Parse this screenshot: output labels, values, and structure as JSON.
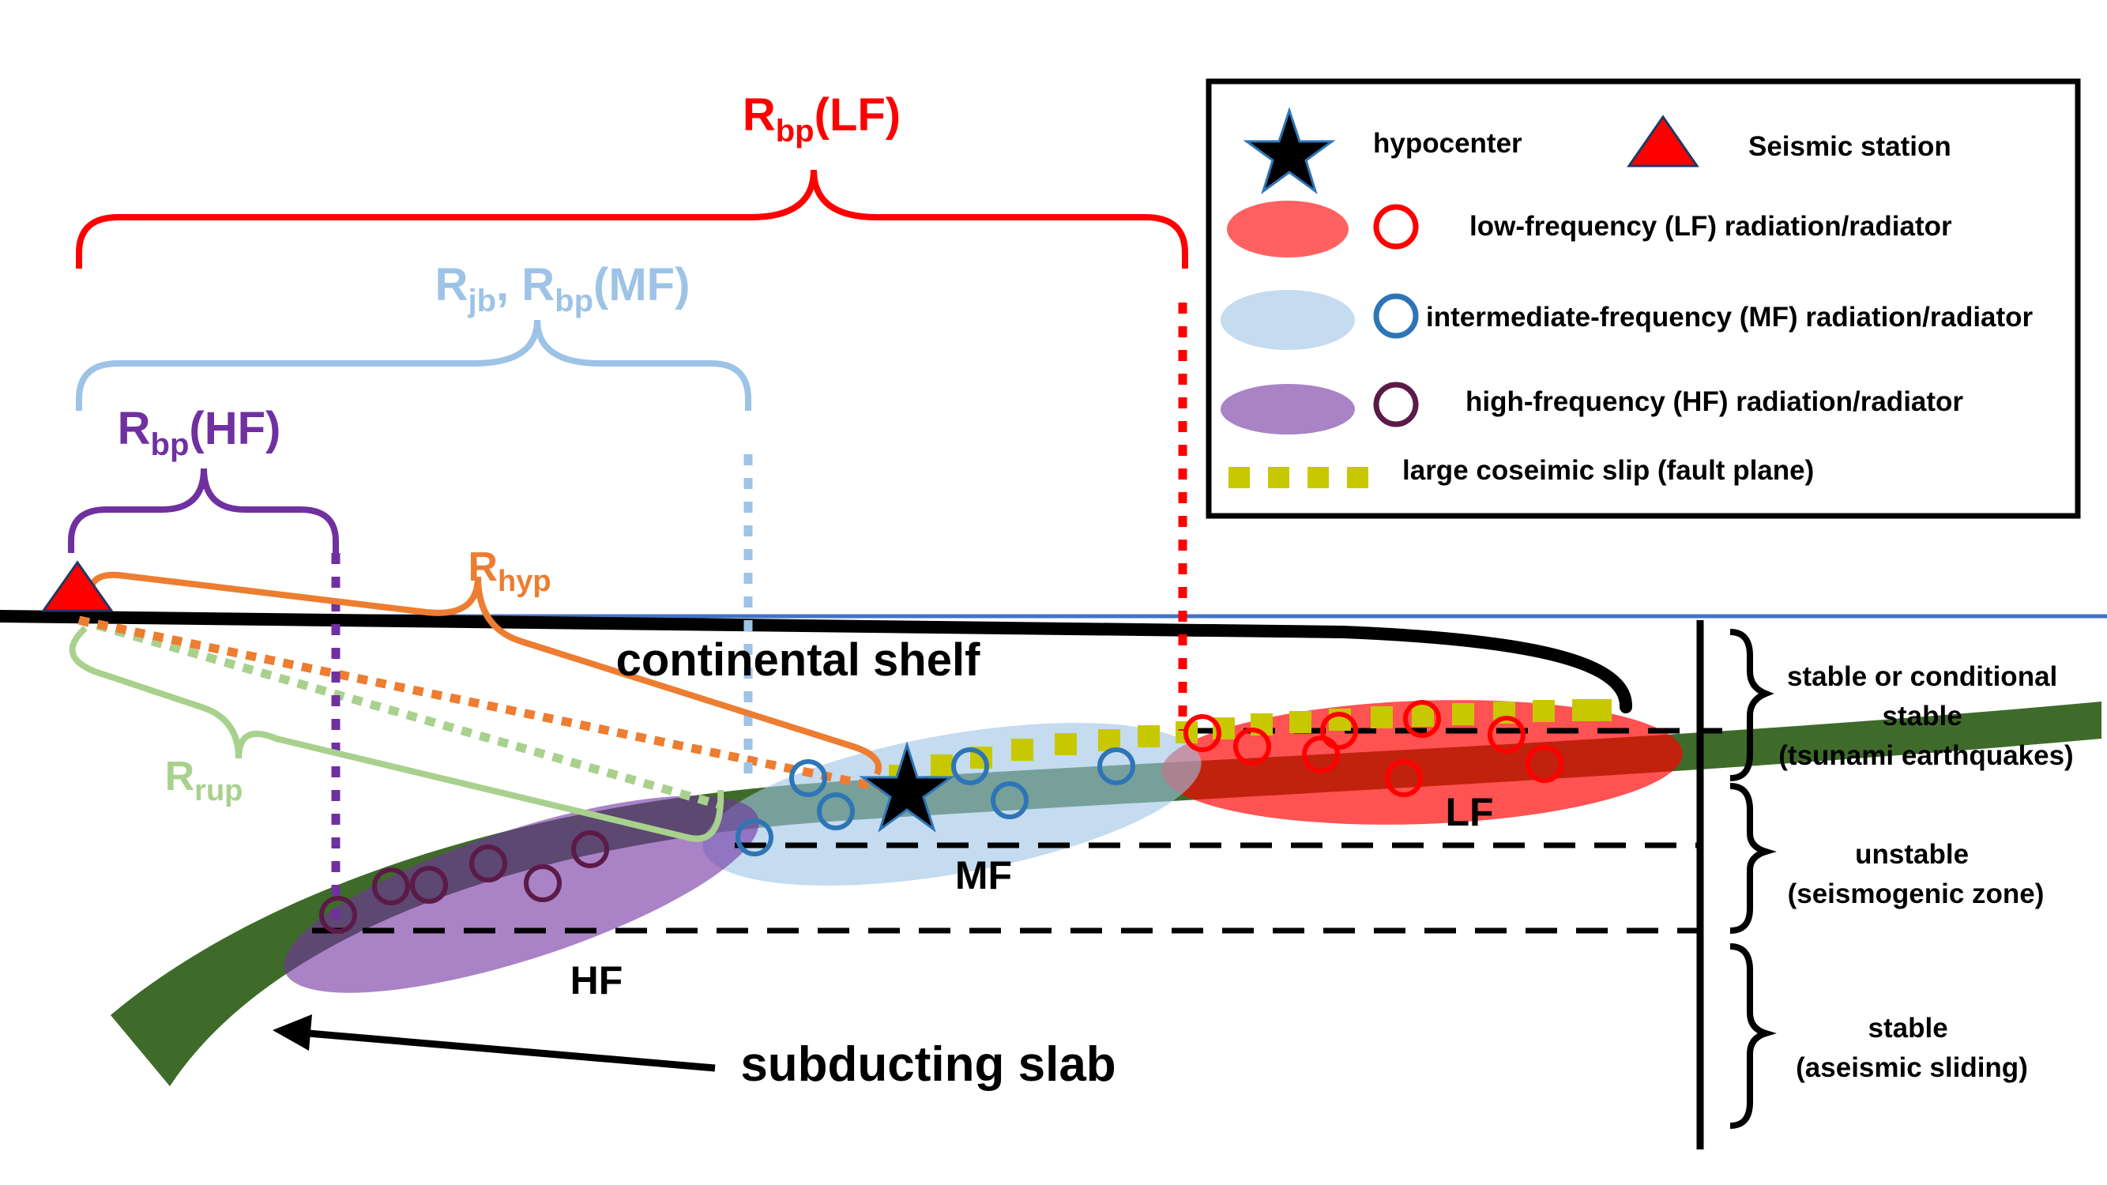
{
  "labels": {
    "rbp_lf": {
      "base": "R",
      "sub": "bp",
      "suffix": "(LF)"
    },
    "rjb_mf": {
      "base1": "R",
      "sub1": "jb",
      "mid": ", R",
      "sub2": "bp",
      "suffix": "(MF)"
    },
    "rbp_hf": {
      "base": "R",
      "sub": "bp",
      "suffix": "(HF)"
    },
    "rhyp": {
      "base": "R",
      "sub": "hyp"
    },
    "rrup": {
      "base": "R",
      "sub": "rup"
    },
    "continental_shelf": "continental shelf",
    "subducting_slab": "subducting slab",
    "zone_lf": "LF",
    "zone_mf": "MF",
    "zone_hf": "HF"
  },
  "legend": {
    "hypocenter": "hypocenter",
    "station": "Seismic station",
    "lf": "low-frequency (LF) radiation/radiator",
    "mf": "intermediate-frequency (MF) radiation/radiator",
    "hf": "high-frequency (HF) radiation/radiator",
    "slip": "large coseimic slip (fault plane)"
  },
  "stability": {
    "top_line1": "stable or conditional",
    "top_line2": "stable",
    "top_line3": "(tsunami earthquakes)",
    "mid_line1": "unstable",
    "mid_line2": "(seismogenic zone)",
    "bot_line1": "stable",
    "bot_line2": "(aseismic sliding)"
  },
  "colors": {
    "lf": "#ff0000",
    "mf": "#9dc3e6",
    "mf_marker": "#2e75b6",
    "hf": "#7030a0",
    "hf_marker": "#5b1a48",
    "rhyp": "#ed7d31",
    "rrup": "#a9d18e",
    "slip": "#c8c800",
    "slab": "#3f6b2a",
    "sea": "#4472c4"
  }
}
